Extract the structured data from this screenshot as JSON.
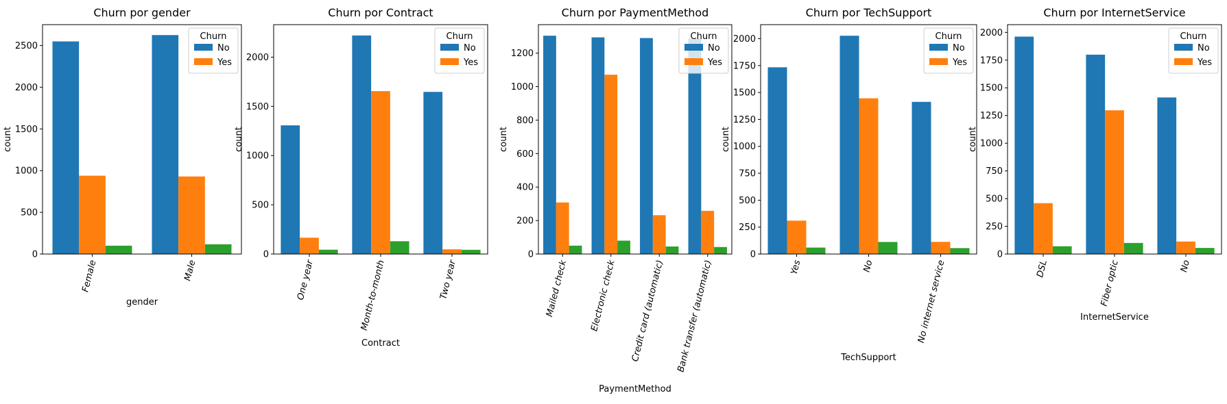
{
  "colors": {
    "No": "#1f77b4",
    "Yes": "#ff7f0e",
    "third": "#2ca02c"
  },
  "chart_data": [
    {
      "type": "bar",
      "title": "Churn por gender",
      "xlabel": "gender",
      "ylabel": "count",
      "categories": [
        "Female",
        "Male"
      ],
      "series": [
        {
          "name": "No",
          "values": [
            2549,
            2625
          ]
        },
        {
          "name": "Yes",
          "values": [
            939,
            930
          ]
        },
        {
          "values": [
            100,
            117
          ]
        }
      ],
      "ylim": [
        0,
        2750
      ],
      "yticks": [
        0,
        500,
        1000,
        1500,
        2000,
        2500
      ],
      "legend": {
        "title": "Churn",
        "placement": "upper right"
      }
    },
    {
      "type": "bar",
      "title": "Churn por Contract",
      "xlabel": "Contract",
      "ylabel": "count",
      "categories": [
        "One year",
        "Month-to-month",
        "Two year"
      ],
      "series": [
        {
          "name": "No",
          "values": [
            1307,
            2220,
            1647
          ]
        },
        {
          "name": "Yes",
          "values": [
            166,
            1655,
            48
          ]
        },
        {
          "values": [
            44,
            130,
            43
          ]
        }
      ],
      "ylim": [
        0,
        2330
      ],
      "yticks": [
        0,
        500,
        1000,
        1500,
        2000
      ],
      "legend": {
        "title": "Churn",
        "placement": "upper right"
      }
    },
    {
      "type": "bar",
      "title": "Churn por PaymentMethod",
      "xlabel": "PaymentMethod",
      "ylabel": "count",
      "categories": [
        "Mailed check",
        "Electronic check",
        "Credit card (automatic)",
        "Bank transfer (automatic)"
      ],
      "series": [
        {
          "name": "No",
          "values": [
            1304,
            1294,
            1290,
            1286
          ]
        },
        {
          "name": "Yes",
          "values": [
            308,
            1071,
            232,
            258
          ]
        },
        {
          "values": [
            50,
            80,
            45,
            42
          ]
        }
      ],
      "ylim": [
        0,
        1370
      ],
      "yticks": [
        0,
        200,
        400,
        600,
        800,
        1000,
        1200
      ],
      "legend": {
        "title": "Churn",
        "placement": "upper right"
      }
    },
    {
      "type": "bar",
      "title": "Churn por TechSupport",
      "xlabel": "TechSupport",
      "ylabel": "count",
      "categories": [
        "Yes",
        "No",
        "No internet service"
      ],
      "series": [
        {
          "name": "No",
          "values": [
            1734,
            2027,
            1413
          ]
        },
        {
          "name": "Yes",
          "values": [
            310,
            1446,
            113
          ]
        },
        {
          "values": [
            60,
            112,
            55
          ]
        }
      ],
      "ylim": [
        0,
        2130
      ],
      "yticks": [
        0,
        250,
        500,
        750,
        1000,
        1250,
        1500,
        1750,
        2000
      ],
      "legend": {
        "title": "Churn",
        "placement": "upper right"
      }
    },
    {
      "type": "bar",
      "title": "Churn por InternetService",
      "xlabel": "InternetService",
      "ylabel": "count",
      "categories": [
        "DSL",
        "Fiber optic",
        "No"
      ],
      "series": [
        {
          "name": "No",
          "values": [
            1962,
            1799,
            1413
          ]
        },
        {
          "name": "Yes",
          "values": [
            459,
            1297,
            113
          ]
        },
        {
          "values": [
            70,
            100,
            55
          ]
        }
      ],
      "ylim": [
        0,
        2070
      ],
      "yticks": [
        0,
        250,
        500,
        750,
        1000,
        1250,
        1500,
        1750,
        2000
      ],
      "legend": {
        "title": "Churn",
        "placement": "upper right"
      }
    }
  ]
}
